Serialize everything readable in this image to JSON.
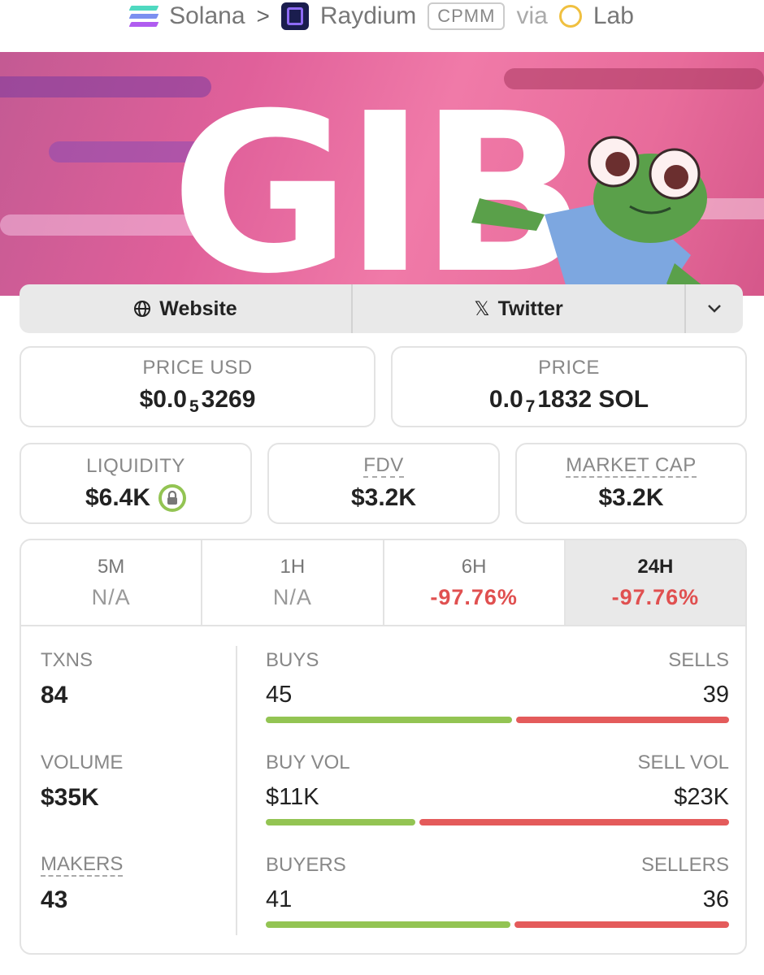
{
  "breadcrumb": {
    "chain": "Solana",
    "dex": "Raydium",
    "pool_type": "CPMM",
    "via_label": "via",
    "launchpad": "Lab"
  },
  "banner": {
    "text": "GIB"
  },
  "links": {
    "website_label": "Website",
    "twitter_label": "Twitter"
  },
  "price": {
    "usd_label": "PRICE USD",
    "usd_prefix": "$0.0",
    "usd_zeros": "5",
    "usd_digits": "3269",
    "native_label": "PRICE",
    "native_prefix": "0.0",
    "native_zeros": "7",
    "native_digits": "1832 SOL"
  },
  "metrics": {
    "liquidity_label": "LIQUIDITY",
    "liquidity_value": "$6.4K",
    "fdv_label": "FDV",
    "fdv_value": "$3.2K",
    "mcap_label": "MARKET CAP",
    "mcap_value": "$3.2K"
  },
  "timeframes": [
    {
      "label": "5M",
      "value": "N/A"
    },
    {
      "label": "1H",
      "value": "N/A"
    },
    {
      "label": "6H",
      "value": "-97.76%"
    },
    {
      "label": "24H",
      "value": "-97.76%"
    }
  ],
  "stats": {
    "txns_label": "TXNS",
    "txns_value": "84",
    "volume_label": "VOLUME",
    "volume_value": "$35K",
    "makers_label": "MAKERS",
    "makers_value": "43",
    "buys_label": "BUYS",
    "buys_value": "45",
    "sells_label": "SELLS",
    "sells_value": "39",
    "buy_vol_label": "BUY VOL",
    "buy_vol_value": "$11K",
    "sell_vol_label": "SELL VOL",
    "sell_vol_value": "$23K",
    "buyers_label": "BUYERS",
    "buyers_value": "41",
    "sellers_label": "SELLERS",
    "sellers_value": "36"
  },
  "bars": {
    "buys_fraction": 0.536,
    "buy_vol_fraction": 0.326,
    "buyers_fraction": 0.532
  },
  "colors": {
    "buy": "#93c453",
    "sell": "#e45b5b",
    "negative": "#e05050"
  }
}
